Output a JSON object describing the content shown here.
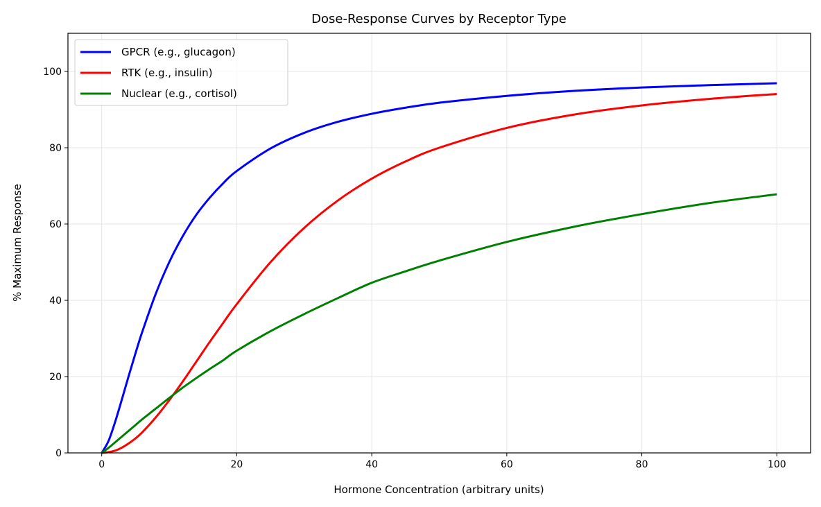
{
  "chart_data": {
    "type": "line",
    "title": "Dose-Response Curves by Receptor Type",
    "xlabel": "Hormone Concentration (arbitrary units)",
    "ylabel": "% Maximum Response",
    "xlim": [
      -5,
      105
    ],
    "ylim": [
      0,
      110
    ],
    "xticks": [
      0,
      20,
      40,
      60,
      80,
      100
    ],
    "yticks": [
      0,
      20,
      40,
      60,
      80,
      100
    ],
    "grid": true,
    "legend_position": "top-left",
    "x": [
      0,
      1,
      2,
      3,
      4,
      5,
      6,
      8,
      10,
      12,
      14,
      16,
      18,
      20,
      25,
      30,
      35,
      40,
      45,
      50,
      60,
      70,
      80,
      90,
      100
    ],
    "series": [
      {
        "name": "GPCR (e.g., glucagon)",
        "color": "#0000ff",
        "values": [
          0,
          3.1,
          8.2,
          14.1,
          20.2,
          26.1,
          31.7,
          41.7,
          50.0,
          56.8,
          62.4,
          66.9,
          70.7,
          73.9,
          79.8,
          83.9,
          86.8,
          88.9,
          90.5,
          91.8,
          93.6,
          94.9,
          95.8,
          96.4,
          96.9
        ]
      },
      {
        "name": "RTK (e.g., insulin)",
        "color": "#ff0000",
        "values": [
          0,
          0.2,
          0.6,
          1.4,
          2.5,
          3.8,
          5.4,
          9.3,
          13.8,
          18.7,
          23.9,
          29.1,
          34.1,
          39.0,
          50.0,
          59.0,
          66.2,
          71.9,
          76.4,
          80.0,
          85.2,
          88.7,
          91.1,
          92.8,
          94.1
        ]
      },
      {
        "name": "Nuclear (e.g., cortisol)",
        "color": "#008000",
        "values": [
          0,
          1.3,
          2.8,
          4.3,
          5.8,
          7.3,
          8.8,
          11.6,
          14.4,
          17.1,
          19.6,
          22.0,
          24.3,
          26.8,
          31.9,
          36.4,
          40.6,
          44.6,
          47.6,
          50.4,
          55.3,
          59.3,
          62.6,
          65.5,
          67.8
        ]
      }
    ]
  }
}
